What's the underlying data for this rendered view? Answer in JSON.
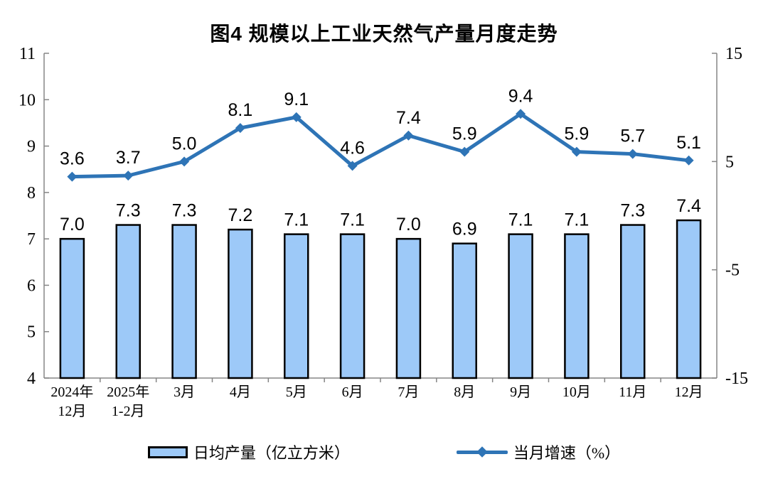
{
  "chart_data": {
    "type": "combo",
    "title": "图4 规模以上工业天然气产量月度走势",
    "categories": [
      "2024年\n12月",
      "2025年\n1-2月",
      "3月",
      "4月",
      "5月",
      "6月",
      "7月",
      "8月",
      "9月",
      "10月",
      "11月",
      "12月"
    ],
    "series": [
      {
        "name": "日均产量（亿立方米）",
        "type": "bar",
        "axis": "left",
        "values": [
          7.0,
          7.3,
          7.3,
          7.2,
          7.1,
          7.1,
          7.0,
          6.9,
          7.1,
          7.1,
          7.3,
          7.4
        ]
      },
      {
        "name": "当月增速（%）",
        "type": "line",
        "axis": "right",
        "values": [
          3.6,
          3.7,
          5.0,
          8.1,
          9.1,
          4.6,
          7.4,
          5.9,
          9.4,
          5.9,
          5.7,
          5.1
        ]
      }
    ],
    "axes": {
      "left": {
        "min": 4,
        "max": 11,
        "ticks": [
          11,
          10,
          9,
          8,
          7,
          6,
          5,
          4
        ]
      },
      "right": {
        "min": -15,
        "max": 15,
        "ticks": [
          15,
          5,
          -5,
          -15
        ]
      }
    },
    "grid": false,
    "legend_position": "bottom",
    "colors": {
      "bar_fill": "#9DC9F8",
      "bar_border": "#000000",
      "line": "#2E74B6",
      "axis": "#858585",
      "label": "#000000"
    }
  }
}
